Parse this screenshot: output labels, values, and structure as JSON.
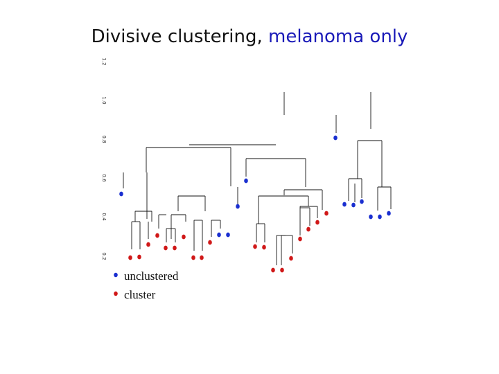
{
  "title": {
    "main": "Divisive clustering, ",
    "highlight": "melanoma only",
    "highlight_color": "#1a1ab8"
  },
  "colors": {
    "unclustered": "#1a2fd0",
    "cluster": "#d01818",
    "line": "#111111"
  },
  "axis": {
    "ticks": [
      "0.2",
      "0.4",
      "0.6",
      "0.8",
      "1.0",
      "1.2"
    ]
  },
  "legend": {
    "items": [
      {
        "label": "unclustered",
        "group": "unclustered"
      },
      {
        "label": "cluster",
        "group": "cluster"
      }
    ]
  }
}
